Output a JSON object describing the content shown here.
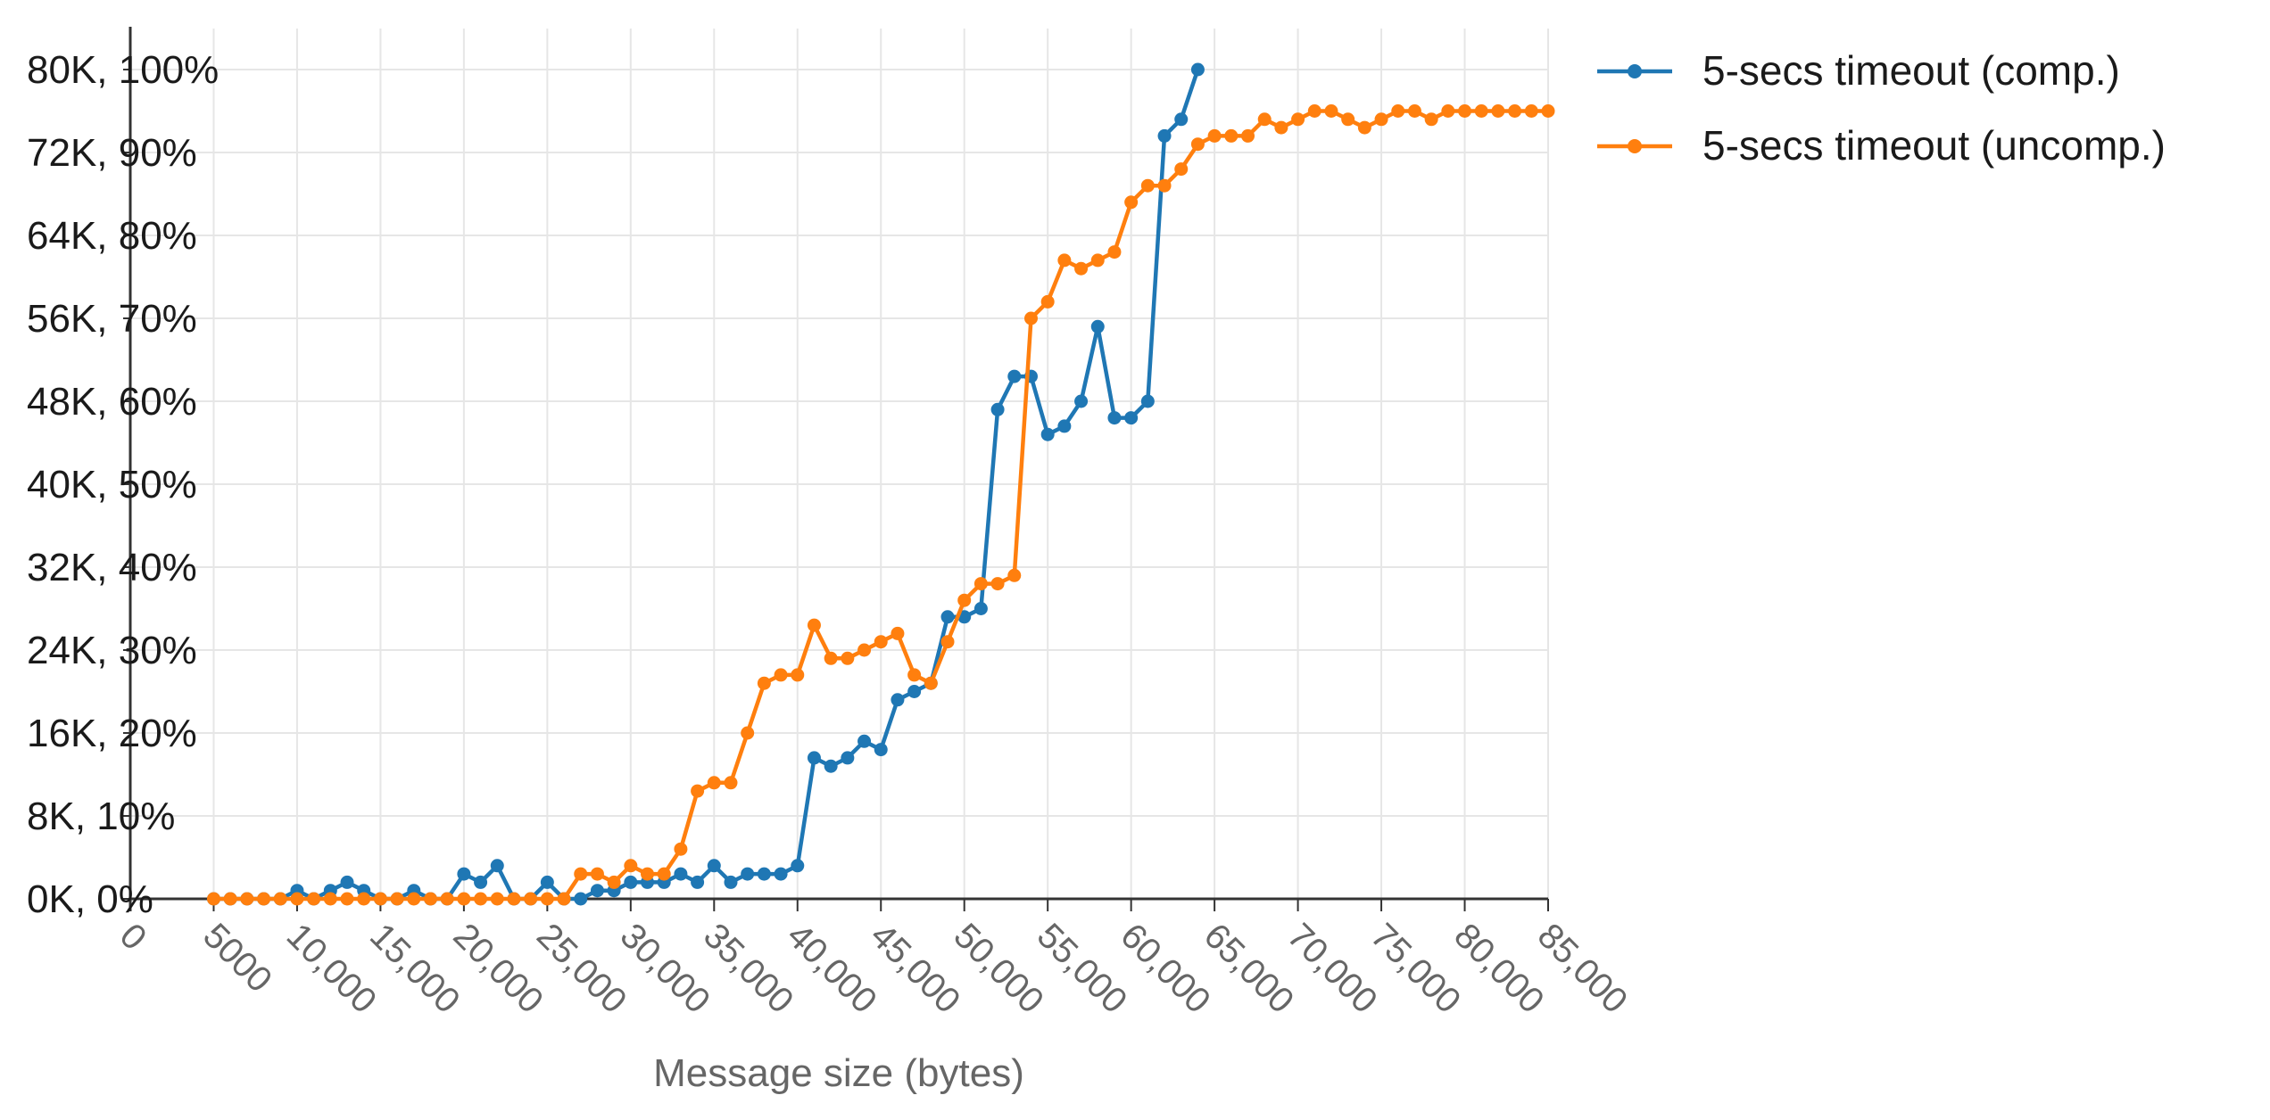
{
  "chart_data": {
    "type": "line",
    "title": "",
    "xlabel": "Message size (bytes)",
    "ylabel": "",
    "x_tick_labels": [
      "0",
      "5000",
      "10,000",
      "15,000",
      "20,000",
      "25,000",
      "30,000",
      "35,000",
      "40,000",
      "45,000",
      "50,000",
      "55,000",
      "60,000",
      "65,000",
      "70,000",
      "75,000",
      "80,000",
      "85,000"
    ],
    "y_tick_labels": [
      "0K, 0%",
      "8K, 10%",
      "16K, 20%",
      "24K, 30%",
      "32K, 40%",
      "40K, 50%",
      "48K, 60%",
      "56K, 70%",
      "64K, 80%",
      "72K, 90%",
      "80K, 100%"
    ],
    "xlim": [
      0,
      85000
    ],
    "ylim": [
      0,
      100
    ],
    "grid": true,
    "legend_position": "top-right",
    "colors": {
      "comp": "#1f77b4",
      "uncomp": "#ff7f0e",
      "grid": "#e6e6e6",
      "axis": "#333333"
    },
    "series": [
      {
        "name": "5-secs timeout (comp.)",
        "color": "#1f77b4",
        "x": [
          5000,
          6000,
          7000,
          8000,
          9000,
          10000,
          11000,
          12000,
          13000,
          14000,
          15000,
          16000,
          17000,
          18000,
          19000,
          20000,
          21000,
          22000,
          23000,
          24000,
          25000,
          26000,
          27000,
          28000,
          29000,
          30000,
          31000,
          32000,
          33000,
          34000,
          35000,
          36000,
          37000,
          38000,
          39000,
          40000,
          41000,
          42000,
          43000,
          44000,
          45000,
          46000,
          47000,
          48000,
          49000,
          50000,
          51000,
          52000,
          53000,
          54000,
          55000,
          56000,
          57000,
          58000,
          59000,
          60000,
          61000,
          62000,
          63000,
          64000
        ],
        "y": [
          0,
          0,
          0,
          0,
          0,
          1,
          0,
          1,
          2,
          1,
          0,
          0,
          1,
          0,
          0,
          3,
          2,
          4,
          0,
          0,
          2,
          0,
          0,
          1,
          1,
          2,
          2,
          2,
          3,
          2,
          4,
          2,
          3,
          3,
          3,
          4,
          17,
          16,
          17,
          19,
          18,
          24,
          25,
          26,
          34,
          34,
          35,
          59,
          63,
          63,
          56,
          57,
          60,
          69,
          58,
          58,
          60,
          92,
          94,
          100
        ],
        "values": [
          0,
          0,
          0,
          0,
          0,
          1,
          0,
          1,
          2,
          1,
          0,
          0,
          1,
          0,
          0,
          3,
          2,
          4,
          0,
          0,
          2,
          0,
          0,
          1,
          1,
          2,
          2,
          2,
          3,
          2,
          4,
          2,
          3,
          3,
          3,
          4,
          17,
          16,
          17,
          19,
          18,
          24,
          25,
          26,
          34,
          34,
          35,
          59,
          63,
          63,
          56,
          57,
          60,
          69,
          58,
          58,
          60,
          92,
          94,
          100
        ]
      },
      {
        "name": "5-secs timeout (uncomp.)",
        "color": "#ff7f0e",
        "x": [
          5000,
          6000,
          7000,
          8000,
          9000,
          10000,
          11000,
          12000,
          13000,
          14000,
          15000,
          16000,
          17000,
          18000,
          19000,
          20000,
          21000,
          22000,
          23000,
          24000,
          25000,
          26000,
          27000,
          28000,
          29000,
          30000,
          31000,
          32000,
          33000,
          34000,
          35000,
          36000,
          37000,
          38000,
          39000,
          40000,
          41000,
          42000,
          43000,
          44000,
          45000,
          46000,
          47000,
          48000,
          49000,
          50000,
          51000,
          52000,
          53000,
          54000,
          55000,
          56000,
          57000,
          58000,
          59000,
          60000,
          61000,
          62000,
          63000,
          64000,
          65000,
          66000,
          67000,
          68000,
          69000,
          70000,
          71000,
          72000,
          73000,
          74000,
          75000,
          76000,
          77000,
          78000,
          79000,
          80000,
          81000,
          82000,
          83000,
          84000,
          85000
        ],
        "y": [
          0,
          0,
          0,
          0,
          0,
          0,
          0,
          0,
          0,
          0,
          0,
          0,
          0,
          0,
          0,
          0,
          0,
          0,
          0,
          0,
          0,
          0,
          3,
          3,
          2,
          4,
          3,
          3,
          6,
          13,
          14,
          14,
          20,
          26,
          27,
          27,
          33,
          29,
          29,
          30,
          31,
          32,
          27,
          26,
          31,
          36,
          38,
          38,
          39,
          70,
          72,
          77,
          76,
          77,
          78,
          84,
          86,
          86,
          88,
          91,
          92,
          92,
          92,
          94,
          93,
          94,
          95,
          95,
          94,
          93,
          94,
          95,
          95,
          94,
          95,
          95,
          95,
          95,
          95,
          95,
          95
        ],
        "values": [
          0,
          0,
          0,
          0,
          0,
          0,
          0,
          0,
          0,
          0,
          0,
          0,
          0,
          0,
          0,
          0,
          0,
          0,
          0,
          0,
          0,
          0,
          3,
          3,
          2,
          4,
          3,
          3,
          6,
          13,
          14,
          14,
          20,
          26,
          27,
          27,
          33,
          29,
          29,
          30,
          31,
          32,
          27,
          26,
          31,
          36,
          38,
          38,
          39,
          70,
          72,
          77,
          76,
          77,
          78,
          84,
          86,
          86,
          88,
          91,
          92,
          92,
          92,
          94,
          93,
          94,
          95,
          95,
          94,
          93,
          94,
          95,
          95,
          94,
          95,
          95,
          95,
          95,
          95,
          95,
          95
        ]
      }
    ]
  }
}
